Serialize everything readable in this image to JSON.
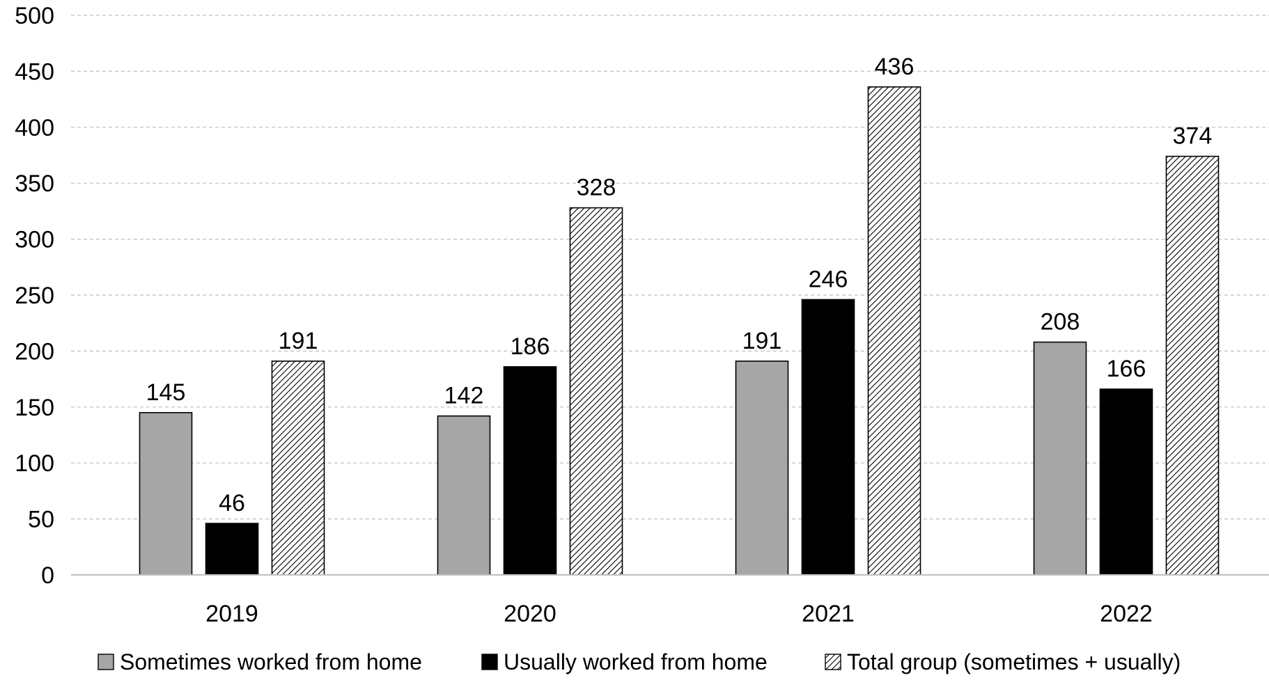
{
  "chart_data": {
    "type": "bar",
    "title": "",
    "xlabel": "",
    "ylabel": "",
    "ylim": [
      0,
      500
    ],
    "yticks": [
      0,
      50,
      100,
      150,
      200,
      250,
      300,
      350,
      400,
      450,
      500
    ],
    "grid": true,
    "legend_position": "bottom",
    "categories": [
      "2019",
      "2020",
      "2021",
      "2022"
    ],
    "series": [
      {
        "name": "Sometimes worked from home",
        "values": [
          145,
          142,
          191,
          208
        ],
        "fill": "#a6a6a6",
        "pattern": "solid"
      },
      {
        "name": "Usually worked from home",
        "values": [
          46,
          186,
          246,
          166
        ],
        "fill": "#000000",
        "pattern": "solid"
      },
      {
        "name": "Total group (sometimes + usually)",
        "values": [
          191,
          328,
          436,
          374
        ],
        "fill": "#ffffff",
        "pattern": "hatch"
      }
    ],
    "colors": {
      "axis": "#bfbfbf",
      "grid": "#bfbfbf",
      "bar_stroke": "#000000"
    }
  }
}
